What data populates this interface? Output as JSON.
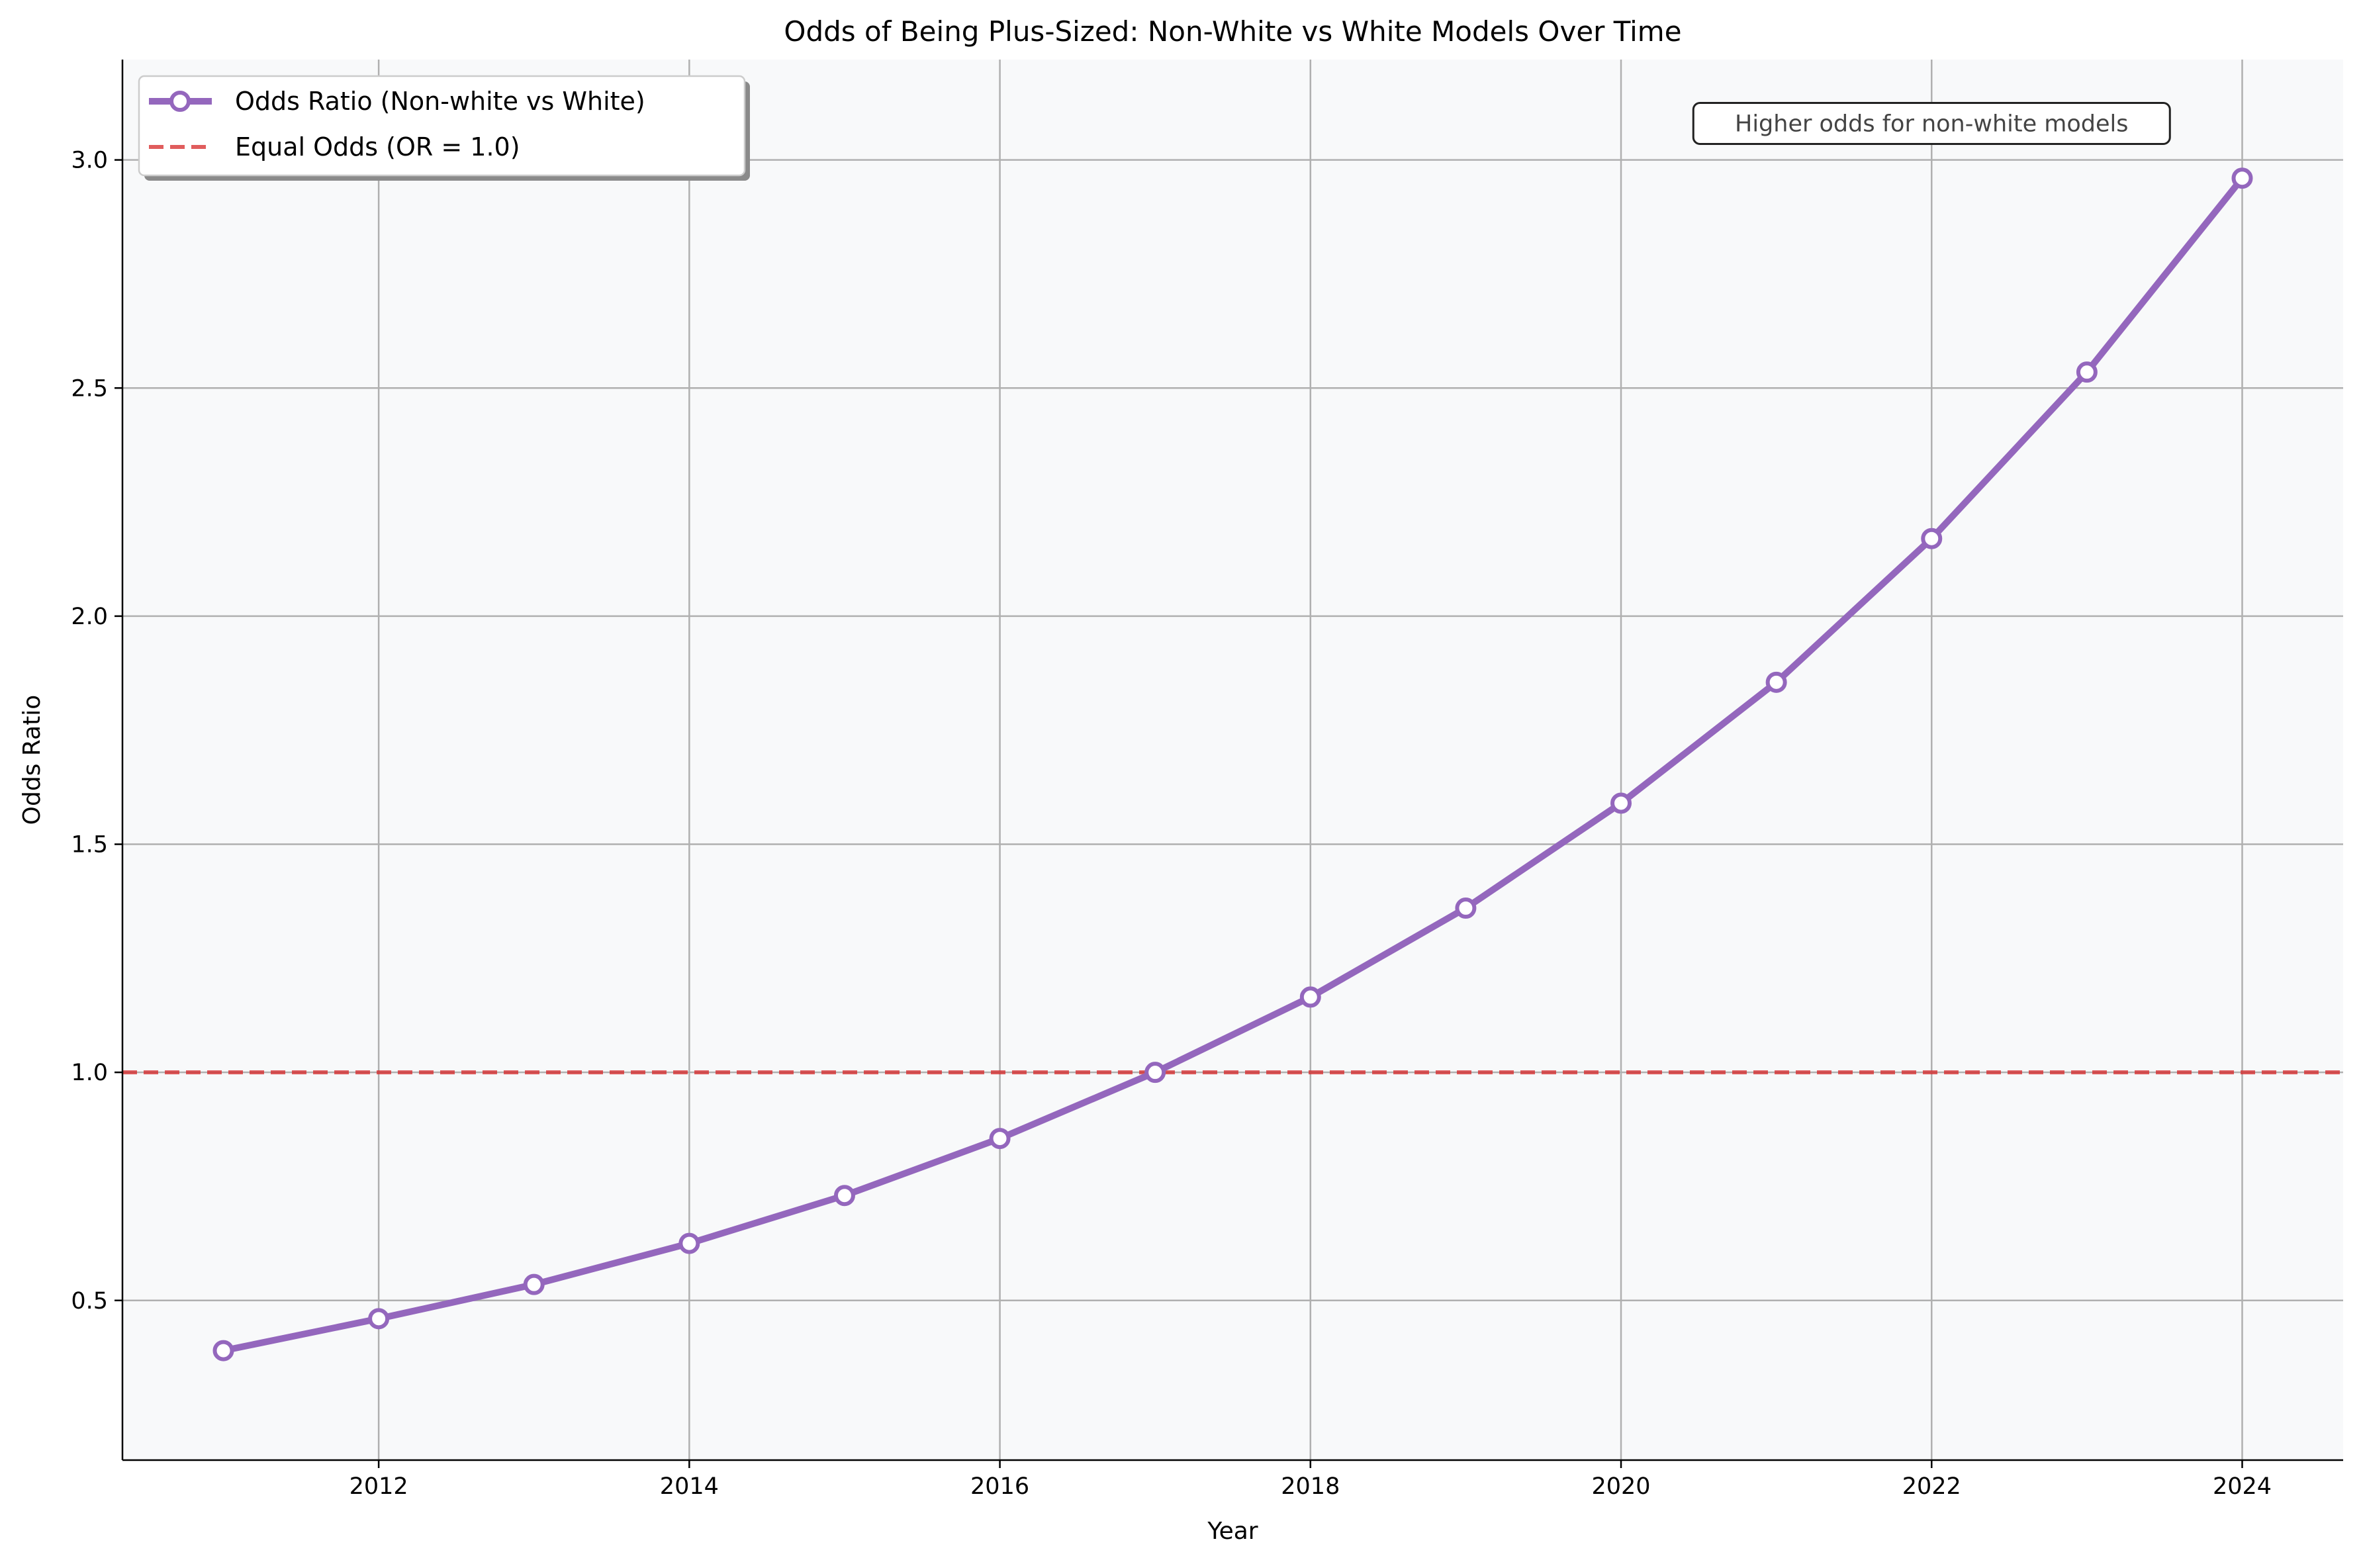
{
  "chart_data": {
    "type": "line",
    "title": "Odds of Being Plus-Sized: Non-White vs White Models Over Time",
    "xlabel": "Year",
    "ylabel": "Odds Ratio",
    "xlim": [
      2010.35,
      2024.65
    ],
    "ylim": [
      0.15,
      3.22
    ],
    "xticks": [
      2012,
      2014,
      2016,
      2018,
      2020,
      2022,
      2024
    ],
    "yticks": [
      0.5,
      1.0,
      1.5,
      2.0,
      2.5,
      3.0
    ],
    "xtick_labels": [
      "2012",
      "2014",
      "2016",
      "2018",
      "2020",
      "2022",
      "2024"
    ],
    "ytick_labels": [
      "0.5",
      "1.0",
      "1.5",
      "2.0",
      "2.5",
      "3.0"
    ],
    "grid": true,
    "legend_position": "top-left",
    "series": [
      {
        "name": "Odds Ratio (Non-white vs White)",
        "color": "#9467bd",
        "x": [
          2011,
          2012,
          2013,
          2014,
          2015,
          2016,
          2017,
          2018,
          2019,
          2020,
          2021,
          2022,
          2023,
          2024
        ],
        "y": [
          0.39,
          0.46,
          0.535,
          0.625,
          0.73,
          0.855,
          1.0,
          1.165,
          1.36,
          1.59,
          1.855,
          2.17,
          2.535,
          2.96
        ]
      }
    ],
    "reference_lines": [
      {
        "name": "Equal Odds (OR = 1.0)",
        "y": 1.0,
        "color": "#d62728",
        "style": "dashed"
      }
    ],
    "annotations": [
      {
        "text": "Higher odds for non-white models",
        "x": 2022,
        "y": 3.08
      }
    ],
    "colors": {
      "plot_background": "#f8f9fa",
      "grid": "#b0b0b0"
    }
  }
}
